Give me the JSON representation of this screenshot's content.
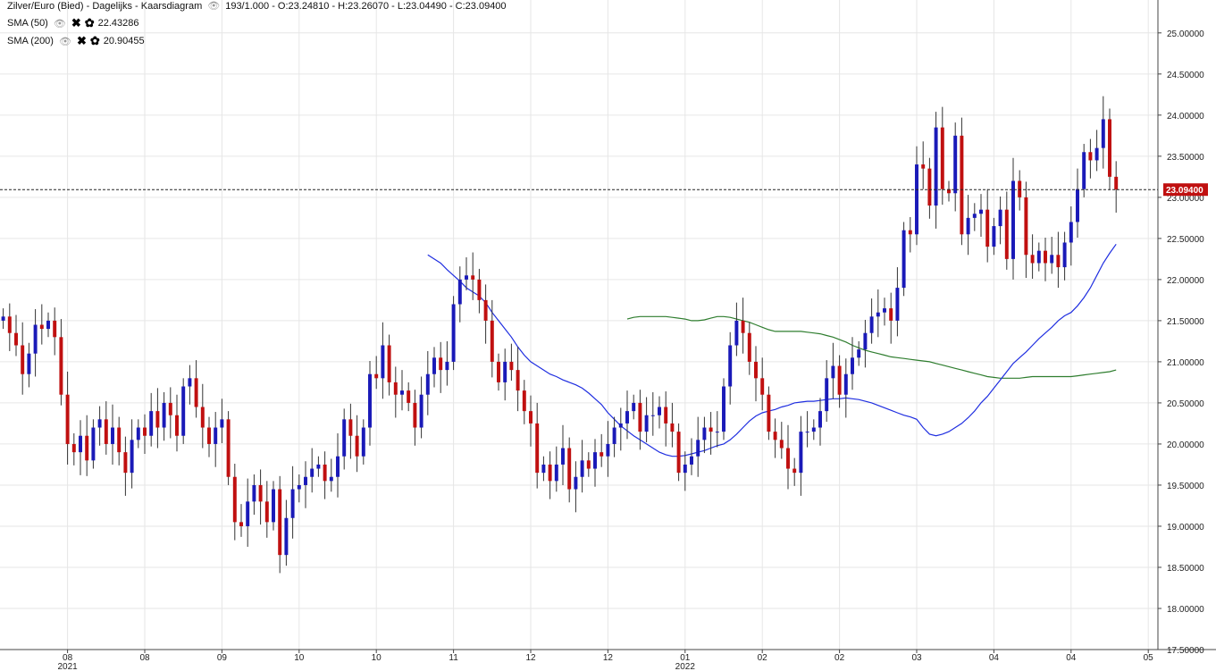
{
  "header": {
    "instrument": "Zilver/Euro (Bied) - Dagelijks - Kaarsdiagram",
    "ohlc": "193/1.000 - O:23.24810 - H:23.26070 - L:23.04490 - C:23.09400",
    "eye_icon": "eye-icon"
  },
  "indicators": [
    {
      "name": "SMA (50)",
      "value": "22.43286",
      "color": "#1f2ee0"
    },
    {
      "name": "SMA (200)",
      "value": "20.90455",
      "color": "#2e7d2e"
    }
  ],
  "chart_data": {
    "type": "candlestick",
    "ylim": [
      17.5,
      25.4
    ],
    "y_ticks": [
      "25.00000",
      "24.50000",
      "24.00000",
      "23.50000",
      "23.00000",
      "22.50000",
      "22.00000",
      "21.50000",
      "21.00000",
      "20.50000",
      "20.00000",
      "19.50000",
      "19.00000",
      "18.50000",
      "18.00000",
      "17.50000"
    ],
    "x_ticks": [
      {
        "label": "08",
        "sub": "2021",
        "i": 10
      },
      {
        "label": "08",
        "sub": "",
        "i": 22
      },
      {
        "label": "09",
        "sub": "",
        "i": 34
      },
      {
        "label": "10",
        "sub": "",
        "i": 46
      },
      {
        "label": "10",
        "sub": "",
        "i": 58
      },
      {
        "label": "11",
        "sub": "",
        "i": 70
      },
      {
        "label": "12",
        "sub": "",
        "i": 82
      },
      {
        "label": "12",
        "sub": "",
        "i": 94
      },
      {
        "label": "01",
        "sub": "2022",
        "i": 106
      },
      {
        "label": "02",
        "sub": "",
        "i": 118
      },
      {
        "label": "02",
        "sub": "",
        "i": 130
      },
      {
        "label": "03",
        "sub": "",
        "i": 142
      },
      {
        "label": "04",
        "sub": "",
        "i": 154
      },
      {
        "label": "04",
        "sub": "",
        "i": 166
      },
      {
        "label": "05",
        "sub": "",
        "i": 178
      }
    ],
    "x_slots": 180,
    "current_price": "23.09400",
    "up_color": "#1a1ab8",
    "down_color": "#c01010",
    "closes": [
      21.55,
      21.35,
      21.2,
      20.85,
      21.1,
      21.45,
      21.4,
      21.5,
      21.3,
      20.6,
      20.0,
      19.9,
      20.1,
      19.8,
      20.2,
      20.3,
      20.0,
      20.2,
      19.9,
      19.65,
      20.05,
      20.2,
      20.1,
      20.4,
      20.2,
      20.5,
      20.35,
      20.1,
      20.7,
      20.8,
      20.45,
      20.2,
      20.0,
      20.2,
      20.3,
      19.6,
      19.05,
      19.0,
      19.3,
      19.5,
      19.3,
      19.05,
      19.45,
      18.65,
      19.1,
      19.45,
      19.5,
      19.6,
      19.7,
      19.75,
      19.55,
      19.6,
      19.85,
      20.3,
      20.1,
      19.85,
      20.2,
      20.85,
      20.8,
      21.2,
      20.75,
      20.6,
      20.65,
      20.5,
      20.2,
      20.6,
      20.85,
      21.05,
      20.9,
      21.0,
      21.7,
      22.0,
      22.05,
      22.0,
      21.75,
      21.5,
      21.0,
      20.75,
      21.0,
      20.9,
      20.65,
      20.4,
      20.25,
      19.65,
      19.75,
      19.55,
      19.75,
      19.95,
      19.45,
      19.6,
      19.8,
      19.7,
      19.9,
      19.85,
      20.0,
      20.2,
      20.25,
      20.4,
      20.5,
      20.15,
      20.35,
      20.35,
      20.45,
      20.25,
      20.15,
      19.65,
      19.75,
      19.85,
      20.05,
      20.2,
      20.15,
      20.15,
      20.7,
      21.2,
      21.5,
      21.35,
      21.0,
      20.8,
      20.6,
      20.15,
      20.05,
      19.95,
      19.7,
      19.65,
      20.15,
      20.15,
      20.2,
      20.4,
      20.8,
      20.95,
      20.6,
      20.85,
      21.05,
      21.15,
      21.35,
      21.55,
      21.6,
      21.65,
      21.5,
      21.9,
      22.6,
      22.55,
      23.4,
      23.35,
      22.9,
      23.85,
      23.1,
      23.05,
      23.75,
      22.55,
      22.75,
      22.8,
      22.85,
      22.4,
      22.65,
      22.85,
      22.25,
      23.2,
      23.0,
      22.3,
      22.2,
      22.35,
      22.2,
      22.3,
      22.15,
      22.45,
      22.7,
      23.1,
      23.55,
      23.45,
      23.6,
      23.95,
      23.25,
      23.094
    ],
    "series": [
      {
        "name": "SMA (50)",
        "values": [
          22.3,
          22.25,
          22.2,
          22.12,
          22.05,
          21.98,
          21.9,
          21.85,
          21.8,
          21.72,
          21.6,
          21.5,
          21.4,
          21.3,
          21.18,
          21.08,
          21.0,
          20.95,
          20.9,
          20.85,
          20.82,
          20.78,
          20.75,
          20.72,
          20.68,
          20.62,
          20.55,
          20.48,
          20.38,
          20.3,
          20.22,
          20.16,
          20.1,
          20.05,
          20.0,
          19.95,
          19.9,
          19.87,
          19.85,
          19.85,
          19.86,
          19.88,
          19.9,
          19.92,
          19.95,
          19.98,
          20.0,
          20.05,
          20.12,
          20.2,
          20.28,
          20.34,
          20.38,
          20.4,
          20.42,
          20.45,
          20.47,
          20.5,
          20.51,
          20.52,
          20.52,
          20.53,
          20.54,
          20.55,
          20.55,
          20.56,
          20.55,
          20.54,
          20.52,
          20.5,
          20.47,
          20.44,
          20.41,
          20.38,
          20.35,
          20.33,
          20.3,
          20.2,
          20.12,
          20.1,
          20.12,
          20.15,
          20.2,
          20.25,
          20.32,
          20.4,
          20.5,
          20.58,
          20.68,
          20.78,
          20.88,
          20.98,
          21.05,
          21.12,
          21.2,
          21.28,
          21.35,
          21.42,
          21.5,
          21.56,
          21.6,
          21.68,
          21.78,
          21.9,
          22.05,
          22.2,
          22.32,
          22.43
        ]
      },
      {
        "name": "SMA (200)",
        "values": [
          21.52,
          21.54,
          21.55,
          21.55,
          21.55,
          21.55,
          21.55,
          21.54,
          21.53,
          21.52,
          21.5,
          21.5,
          21.51,
          21.53,
          21.55,
          21.55,
          21.54,
          21.52,
          21.5,
          21.48,
          21.45,
          21.42,
          21.39,
          21.37,
          21.37,
          21.37,
          21.37,
          21.37,
          21.36,
          21.35,
          21.34,
          21.32,
          21.3,
          21.27,
          21.24,
          21.2,
          21.17,
          21.14,
          21.12,
          21.1,
          21.08,
          21.06,
          21.05,
          21.04,
          21.03,
          21.02,
          21.01,
          21.0,
          20.98,
          20.96,
          20.94,
          20.92,
          20.9,
          20.88,
          20.86,
          20.84,
          20.82,
          20.81,
          20.8,
          20.8,
          20.8,
          20.8,
          20.81,
          20.82,
          20.82,
          20.82,
          20.82,
          20.82,
          20.82,
          20.82,
          20.83,
          20.84,
          20.85,
          20.86,
          20.87,
          20.88,
          20.9
        ]
      }
    ]
  }
}
